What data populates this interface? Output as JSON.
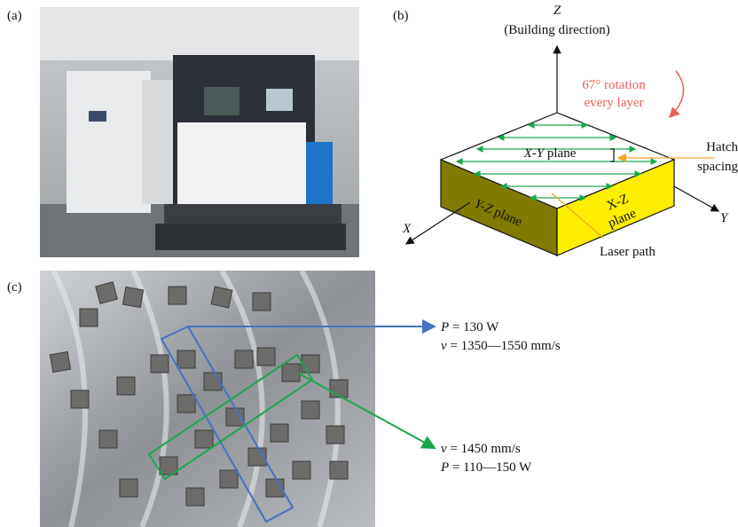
{
  "panels": {
    "a": "(a)",
    "b": "(b)",
    "c": "(c)"
  },
  "diagram": {
    "z_axis": "Z",
    "z_caption": "(Building direction)",
    "rotation": [
      "67° rotation",
      "every layer"
    ],
    "top_plane": {
      "symbol": "X-Y",
      "rest": "plane"
    },
    "hatch": [
      "Hatch",
      "spacing"
    ],
    "left_plane": {
      "symbol": "Y-Z",
      "rest": "plane"
    },
    "right_plane": [
      "X-Z",
      "plane"
    ],
    "x_axis": "X",
    "y_axis": "Y",
    "laser_path": "Laser path"
  },
  "annotations": {
    "blue": [
      {
        "symbol": "P",
        "rest": "= 130 W"
      },
      {
        "symbol": "v",
        "rest": "= 1350—1550 mm/s"
      }
    ],
    "green": [
      {
        "symbol": "v",
        "rest": "= 1450 mm/s"
      },
      {
        "symbol": "P",
        "rest": "= 110—150 W"
      }
    ]
  }
}
